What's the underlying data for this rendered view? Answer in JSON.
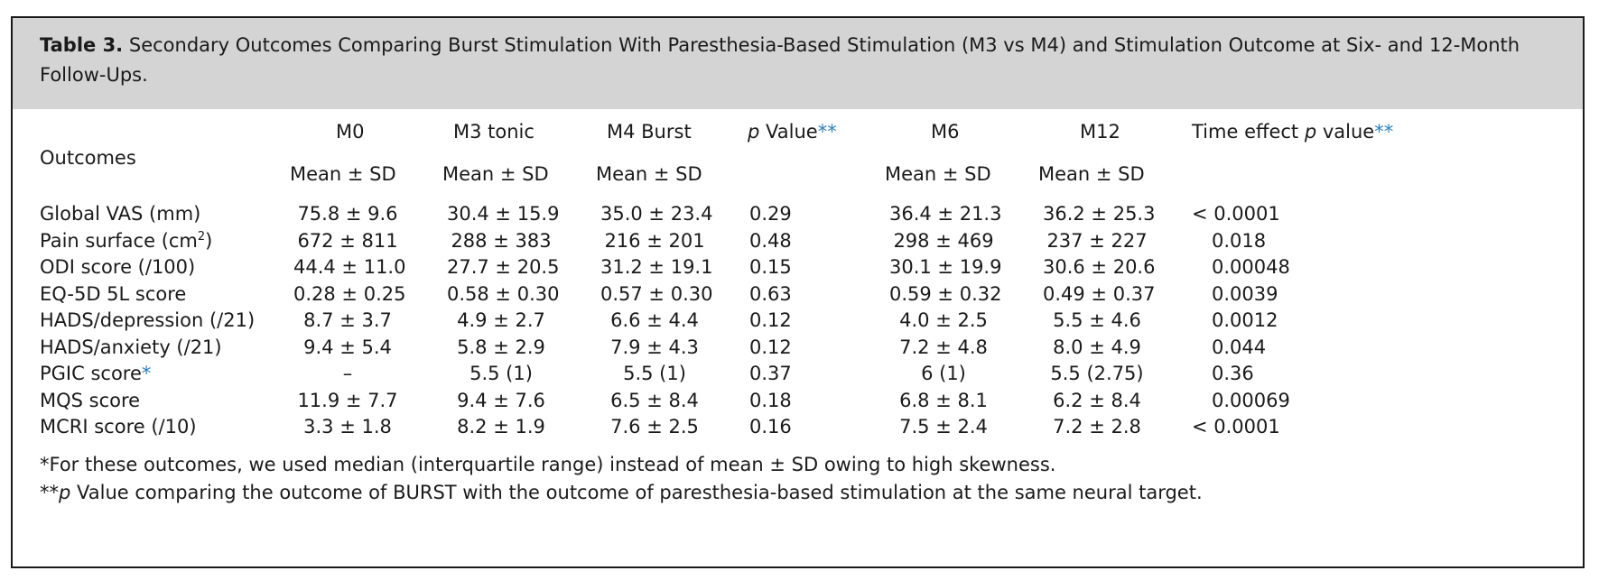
{
  "caption": {
    "label": "Table 3.",
    "text": "Secondary Outcomes Comparing Burst Stimulation With Paresthesia-Based Stimulation (M3 vs M4) and Stimulation Outcome at Six- and 12-Month Follow-Ups."
  },
  "header": {
    "outcomes": "Outcomes",
    "m0": "M0",
    "m3": "M3 tonic",
    "m4": "M4 Burst",
    "p_italic": "p",
    "p_rest": " Value",
    "p_star": "**",
    "m6": "M6",
    "m12": "M12",
    "time_prefix": "Time effect ",
    "time_p": "p",
    "time_rest": " value",
    "time_star": "**",
    "mean_sd": "Mean ± SD"
  },
  "rows": [
    {
      "label": "Global VAS (mm)",
      "m0": "75.8 ± 9.6",
      "m3": "30.4 ± 15.9",
      "m4": "35.0 ± 23.4",
      "p": "0.29",
      "m6": "36.4 ± 21.3",
      "m12": "36.2 ± 25.3",
      "time": "< 0.0001"
    },
    {
      "label": "Pain surface (cm",
      "sup": "2",
      "label_tail": ")",
      "m0": "672 ± 811",
      "m3": "288 ± 383",
      "m4": "216 ± 201",
      "p": "0.48",
      "m6": "298 ± 469",
      "m12": "237 ± 227",
      "time": "0.018"
    },
    {
      "label": "ODI score (/100)",
      "m0": "44.4 ± 11.0",
      "m3": "27.7 ± 20.5",
      "m4": "31.2 ± 19.1",
      "p": "0.15",
      "m6": "30.1 ± 19.9",
      "m12": "30.6 ± 20.6",
      "time": "0.00048"
    },
    {
      "label": "EQ-5D 5L score",
      "m0": "0.28 ± 0.25",
      "m3": "0.58 ± 0.30",
      "m4": "0.57 ± 0.30",
      "p": "0.63",
      "m6": "0.59 ± 0.32",
      "m12": "0.49 ± 0.37",
      "time": "0.0039"
    },
    {
      "label": "HADS/depression (/21)",
      "m0": "8.7 ± 3.7",
      "m3": "4.9 ± 2.7",
      "m4": "6.6 ± 4.4",
      "p": "0.12",
      "m6": "4.0 ± 2.5",
      "m12": "5.5 ± 4.6",
      "time": "0.0012"
    },
    {
      "label": "HADS/anxiety (/21)",
      "m0": "9.4 ± 5.4",
      "m3": "5.8 ± 2.9",
      "m4": "7.9 ± 4.3",
      "p": "0.12",
      "m6": "7.2 ± 4.8",
      "m12": "8.0 ± 4.9",
      "time": "0.044"
    },
    {
      "label": "PGIC score",
      "star": "*",
      "m0": "–",
      "m3": "5.5 (1)",
      "m4": "5.5 (1)",
      "p": "0.37",
      "m6": "6 (1)",
      "m12": "5.5 (2.75)",
      "time": "0.36"
    },
    {
      "label": "MQS score",
      "m0": "11.9 ± 7.7",
      "m3": "9.4 ± 7.6",
      "m4": "6.5 ± 8.4",
      "p": "0.18",
      "m6": "6.8 ± 8.1",
      "m12": "6.2 ± 8.4",
      "time": "0.00069"
    },
    {
      "label": "MCRI score (/10)",
      "m0": "3.3 ± 1.8",
      "m3": "8.2 ± 1.9",
      "m4": "7.6 ± 2.5",
      "p": "0.16",
      "m6": "7.5 ± 2.4",
      "m12": "7.2 ± 2.8",
      "time": "< 0.0001"
    }
  ],
  "footnotes": {
    "note1": "*For these outcomes, we used median (interquartile range) instead of mean ± SD owing to high skewness.",
    "note2_prefix": "**",
    "note2_p": "p",
    "note2_rest": " Value comparing the outcome of BURST with the outcome of paresthesia-based stimulation at the same neural target."
  },
  "colors": {
    "border": "#1a1a1a",
    "caption_bg": "#d4d4d4",
    "accent": "#2a7fbf"
  }
}
